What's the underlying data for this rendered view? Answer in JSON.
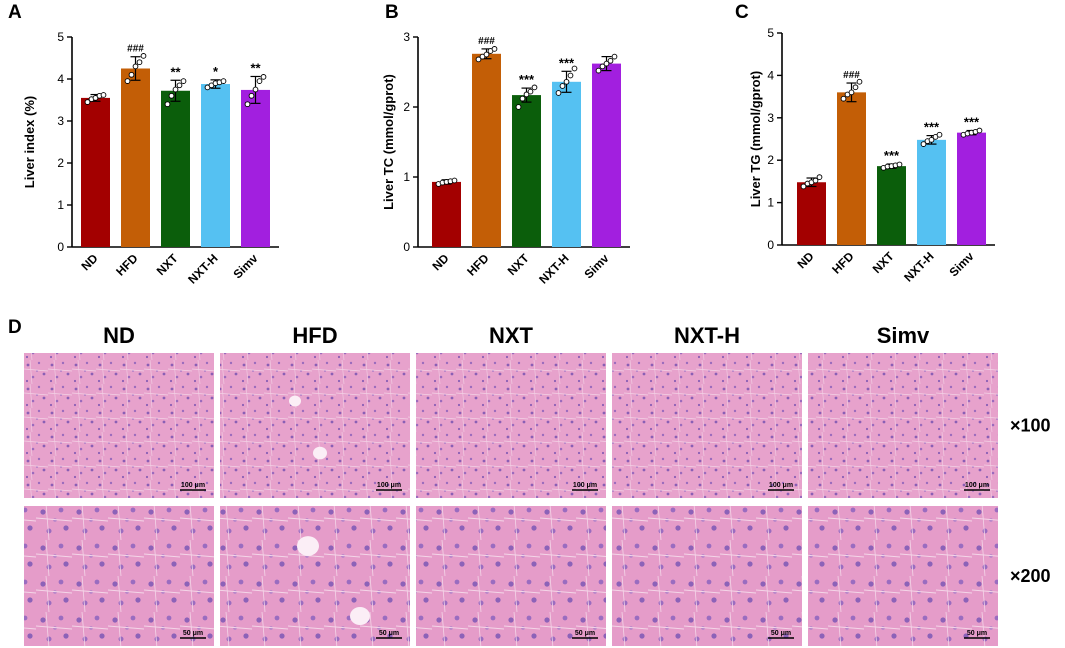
{
  "chart_data": [
    {
      "panel": "A",
      "type": "bar",
      "categories": [
        "ND",
        "HFD",
        "NXT",
        "NXT-H",
        "Simv"
      ],
      "values": [
        3.55,
        4.25,
        3.72,
        3.88,
        3.74
      ],
      "errors": [
        0.08,
        0.28,
        0.25,
        0.1,
        0.32
      ],
      "points": [
        [
          3.45,
          3.52,
          3.55,
          3.6,
          3.62
        ],
        [
          3.95,
          4.1,
          4.3,
          4.4,
          4.55
        ],
        [
          3.4,
          3.6,
          3.75,
          3.85,
          3.95
        ],
        [
          3.8,
          3.85,
          3.9,
          3.92,
          3.95
        ],
        [
          3.4,
          3.6,
          3.75,
          3.95,
          4.05
        ]
      ],
      "colors": [
        "#a30000",
        "#c35e06",
        "#0b5e0b",
        "#55c1f2",
        "#a21fdf"
      ],
      "significance": [
        "",
        "###",
        "**",
        "*",
        "**"
      ],
      "ylabel": "Liver index (%)",
      "ylim": [
        0,
        5
      ],
      "yticks": [
        "0",
        "1",
        "2",
        "3",
        "4",
        "5"
      ]
    },
    {
      "panel": "B",
      "type": "bar",
      "categories": [
        "ND",
        "HFD",
        "NXT",
        "NXT-H",
        "Simv"
      ],
      "values": [
        0.93,
        2.76,
        2.17,
        2.36,
        2.62
      ],
      "errors": [
        0.03,
        0.07,
        0.1,
        0.15,
        0.1
      ],
      "points": [
        [
          0.9,
          0.92,
          0.93,
          0.94,
          0.95
        ],
        [
          2.68,
          2.72,
          2.75,
          2.8,
          2.83
        ],
        [
          2.0,
          2.12,
          2.18,
          2.22,
          2.28
        ],
        [
          2.2,
          2.3,
          2.36,
          2.45,
          2.55
        ],
        [
          2.52,
          2.58,
          2.62,
          2.66,
          2.72
        ]
      ],
      "colors": [
        "#a30000",
        "#c35e06",
        "#0b5e0b",
        "#55c1f2",
        "#a21fdf"
      ],
      "significance": [
        "",
        "###",
        "***",
        "***",
        ""
      ],
      "ylabel": "Liver TC (mmol/gprot)",
      "ylim": [
        0,
        3
      ],
      "yticks": [
        "0",
        "1",
        "2",
        "3"
      ]
    },
    {
      "panel": "C",
      "type": "bar",
      "categories": [
        "ND",
        "HFD",
        "NXT",
        "NXT-H",
        "Simv"
      ],
      "values": [
        1.48,
        3.6,
        1.86,
        2.48,
        2.65
      ],
      "errors": [
        0.1,
        0.22,
        0.05,
        0.1,
        0.05
      ],
      "points": [
        [
          1.38,
          1.45,
          1.48,
          1.52,
          1.6
        ],
        [
          3.45,
          3.55,
          3.6,
          3.72,
          3.85
        ],
        [
          1.82,
          1.85,
          1.86,
          1.88,
          1.9
        ],
        [
          2.38,
          2.45,
          2.48,
          2.55,
          2.6
        ],
        [
          2.6,
          2.63,
          2.65,
          2.67,
          2.7
        ]
      ],
      "colors": [
        "#a30000",
        "#c35e06",
        "#0b5e0b",
        "#55c1f2",
        "#a21fdf"
      ],
      "significance": [
        "",
        "###",
        "***",
        "***",
        "***"
      ],
      "ylabel": "Liver TG (mmol/gprot)",
      "ylim": [
        0,
        5
      ],
      "yticks": [
        "0",
        "1",
        "2",
        "3",
        "4",
        "5"
      ]
    }
  ],
  "histology": {
    "panel": "D",
    "groups": [
      "ND",
      "HFD",
      "NXT",
      "NXT-H",
      "Simv"
    ],
    "magnifications": [
      "×100",
      "×200"
    ],
    "scale_bars": [
      "100 μm",
      "50 μm"
    ]
  },
  "panel_labels": {
    "a": "A",
    "b": "B",
    "c": "C",
    "d": "D"
  }
}
